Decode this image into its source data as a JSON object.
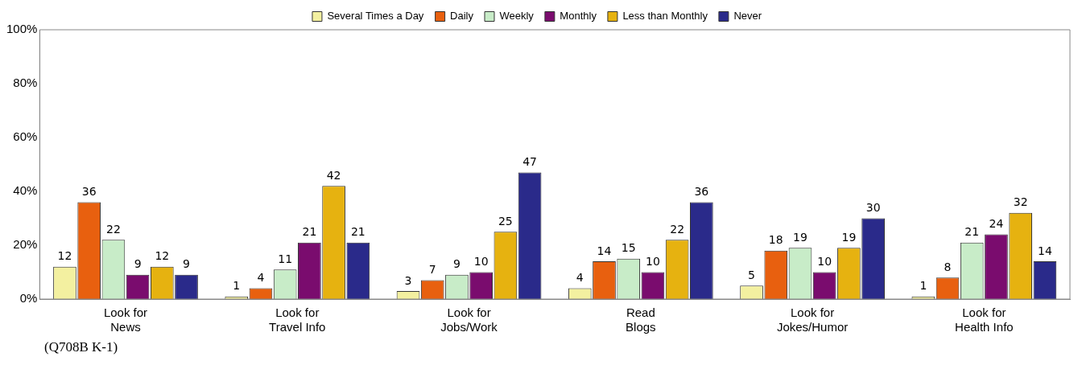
{
  "chart_data": {
    "type": "bar",
    "categories": [
      "Look for News",
      "Look for Travel Info",
      "Look for Jobs/Work",
      "Read Blogs",
      "Look for Jokes/Humor",
      "Look for Health Info"
    ],
    "series": [
      {
        "name": "Several Times a Day",
        "color": "#f3f0a0",
        "values": [
          12,
          1,
          3,
          4,
          5,
          1
        ]
      },
      {
        "name": "Daily",
        "color": "#e8600f",
        "values": [
          36,
          4,
          7,
          14,
          18,
          8
        ]
      },
      {
        "name": "Weekly",
        "color": "#c8ecc8",
        "values": [
          22,
          11,
          9,
          15,
          19,
          21
        ]
      },
      {
        "name": "Monthly",
        "color": "#7a0c6e",
        "values": [
          9,
          21,
          10,
          10,
          10,
          24
        ]
      },
      {
        "name": "Less than Monthly",
        "color": "#e6b210",
        "values": [
          12,
          42,
          25,
          22,
          19,
          32
        ]
      },
      {
        "name": "Never",
        "color": "#2a2a8a",
        "values": [
          9,
          21,
          47,
          36,
          30,
          14
        ]
      }
    ],
    "ylim": [
      0,
      100
    ],
    "yticks": [
      {
        "value": 0,
        "label": "0%"
      },
      {
        "value": 20,
        "label": "20%"
      },
      {
        "value": 40,
        "label": "40%"
      },
      {
        "value": 60,
        "label": "60%"
      },
      {
        "value": 80,
        "label": "80%"
      },
      {
        "value": 100,
        "label": "100%"
      }
    ],
    "grid": false,
    "legend": "top",
    "data_labels": true,
    "annotations": [
      "(Q708B K-1)"
    ]
  }
}
